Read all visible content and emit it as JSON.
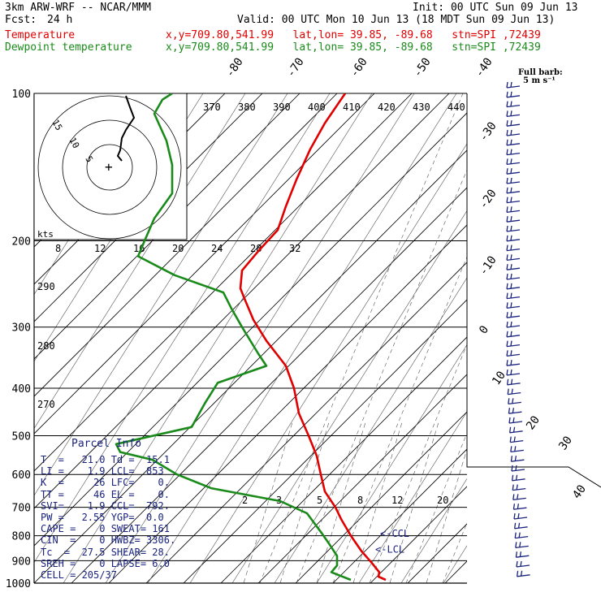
{
  "header": {
    "model": "3km ARW-WRF -- NCAR/MMM",
    "init": "Init: 00 UTC Sun 09 Jun 13",
    "fcst_label": "Fcst:",
    "fcst_value": "24 h",
    "valid": "Valid: 00 UTC Mon 10 Jun 13 (18 MDT Sun 09 Jun 13)",
    "temp_label": "Temperature",
    "dew_label": "Dewpoint temperature",
    "location": "x,y=709.80,541.99   lat,lon= 39.85, -89.68   stn=SPI ,72439"
  },
  "legend_barb": {
    "line1": "Full barb:",
    "line2": "5 m s⁻¹"
  },
  "hodograph": {
    "units": "kts",
    "rings": [
      "5",
      "10",
      "15"
    ]
  },
  "parcel_info": {
    "title": "Parcel Info",
    "rows": [
      "T  =   21.0 Td =  15.1",
      "LI =    1.9 LCL=  853",
      "K  =     26 LFC=    0.",
      "TT =     46 EL =    0.",
      "SVI=    1.9 CCL=  792.",
      "PW =   2.55 YGP=  0.0",
      "CAPE =    0 SWEAT= 161",
      "CIN  =    0 HWBZ= 3306.",
      "Tc  =  27.5 SHEAR= 28.",
      "SREH =    0 LAPSE= 6.0",
      "CELL = 205/37"
    ]
  },
  "level_labels": {
    "ccl": "<-CCL",
    "lcl": "<-LCL"
  },
  "chart_data": {
    "type": "line",
    "title": "",
    "xlabel": "",
    "ylabel": "",
    "y_scale": "log pressure (hPa)",
    "ylim": [
      1000,
      100
    ],
    "pressure_ticks": [
      100,
      200,
      300,
      400,
      500,
      600,
      700,
      800,
      900,
      1000
    ],
    "isotherm_labels": [
      "-80",
      "-70",
      "-60",
      "-50",
      "-40",
      "-30",
      "-20",
      "-10",
      "0",
      "10",
      "20",
      "30",
      "40"
    ],
    "theta_e_labels": [
      "370",
      "380",
      "390",
      "400",
      "410",
      "420",
      "430",
      "440"
    ],
    "theta_labels": [
      "290",
      "280",
      "270"
    ],
    "mixing_ratio_labels_upper": [
      "8",
      "12",
      "16",
      "20",
      "24",
      "28",
      "32"
    ],
    "mixing_ratio_labels_lower": [
      "2",
      "3",
      "5",
      "8",
      "12",
      "20"
    ],
    "series": [
      {
        "name": "Temperature",
        "color": "#e00000",
        "points": [
          {
            "p": 985,
            "x": 475
          },
          {
            "p": 970,
            "x": 466
          },
          {
            "p": 950,
            "x": 467
          },
          {
            "p": 910,
            "x": 458
          },
          {
            "p": 860,
            "x": 445
          },
          {
            "p": 800,
            "x": 432
          },
          {
            "p": 740,
            "x": 420
          },
          {
            "p": 700,
            "x": 413
          },
          {
            "p": 650,
            "x": 400
          },
          {
            "p": 600,
            "x": 395
          },
          {
            "p": 550,
            "x": 390
          },
          {
            "p": 500,
            "x": 380
          },
          {
            "p": 450,
            "x": 368
          },
          {
            "p": 400,
            "x": 362
          },
          {
            "p": 360,
            "x": 352
          },
          {
            "p": 320,
            "x": 328
          },
          {
            "p": 290,
            "x": 312
          },
          {
            "p": 260,
            "x": 300
          },
          {
            "p": 250,
            "x": 296
          },
          {
            "p": 230,
            "x": 298
          },
          {
            "p": 210,
            "x": 318
          },
          {
            "p": 190,
            "x": 342
          },
          {
            "p": 170,
            "x": 352
          },
          {
            "p": 150,
            "x": 365
          },
          {
            "p": 130,
            "x": 382
          },
          {
            "p": 115,
            "x": 400
          },
          {
            "p": 100,
            "x": 425
          }
        ]
      },
      {
        "name": "Dewpoint temperature",
        "color": "#1a8a1a",
        "points": [
          {
            "p": 985,
            "x": 432
          },
          {
            "p": 950,
            "x": 408
          },
          {
            "p": 920,
            "x": 415
          },
          {
            "p": 880,
            "x": 415
          },
          {
            "p": 830,
            "x": 405
          },
          {
            "p": 790,
            "x": 396
          },
          {
            "p": 720,
            "x": 378
          },
          {
            "p": 680,
            "x": 345
          },
          {
            "p": 640,
            "x": 260
          },
          {
            "p": 600,
            "x": 218
          },
          {
            "p": 560,
            "x": 188
          },
          {
            "p": 540,
            "x": 148
          },
          {
            "p": 520,
            "x": 143
          },
          {
            "p": 480,
            "x": 236
          },
          {
            "p": 430,
            "x": 252
          },
          {
            "p": 390,
            "x": 268
          },
          {
            "p": 360,
            "x": 328
          },
          {
            "p": 340,
            "x": 318
          },
          {
            "p": 300,
            "x": 298
          },
          {
            "p": 275,
            "x": 285
          },
          {
            "p": 255,
            "x": 275
          },
          {
            "p": 235,
            "x": 215
          },
          {
            "p": 215,
            "x": 170
          },
          {
            "p": 200,
            "x": 178
          },
          {
            "p": 180,
            "x": 190
          },
          {
            "p": 160,
            "x": 212
          },
          {
            "p": 140,
            "x": 212
          },
          {
            "p": 125,
            "x": 205
          },
          {
            "p": 110,
            "x": 190
          },
          {
            "p": 103,
            "x": 200
          },
          {
            "p": 100,
            "x": 212
          }
        ]
      }
    ]
  }
}
